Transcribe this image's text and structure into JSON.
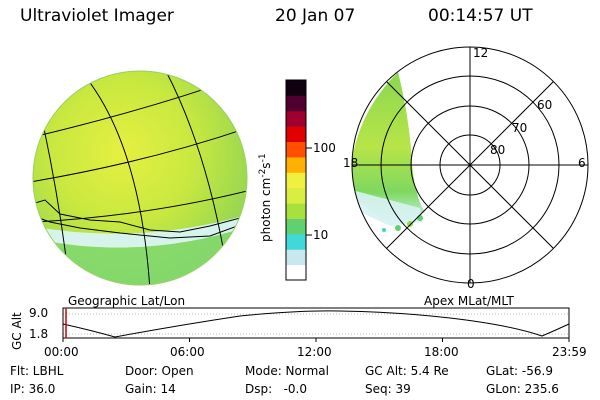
{
  "header": {
    "title": "Ultraviolet Imager",
    "date": "20 Jan 07",
    "time": "00:14:57 UT"
  },
  "left_panel": {
    "label": "Geographic Lat/Lon"
  },
  "right_panel": {
    "label": "Apex MLat/MLT",
    "mlt_labels": [
      "12",
      "18",
      "6",
      "0"
    ],
    "mlat_labels": [
      "60",
      "70",
      "80"
    ]
  },
  "colorbar": {
    "label_main": "photon cm",
    "label_exp1": "-2",
    "label_mid": "s",
    "label_exp2": "-1",
    "ticks": [
      "100",
      "10"
    ],
    "colors": [
      "#ffffff",
      "#c8e8f0",
      "#40d8d8",
      "#60d070",
      "#a8e040",
      "#d8ee40",
      "#f0f040",
      "#ffb000",
      "#ff5000",
      "#e00000",
      "#a00030",
      "#500030",
      "#100010"
    ]
  },
  "altitude_plot": {
    "ylabel": "GC Alt",
    "yticks": [
      "9.0",
      "1.8"
    ],
    "xticks": [
      "00:00",
      "06:00",
      "12:00",
      "18:00",
      "23:59"
    ]
  },
  "info": {
    "flt": "Flt: LBHL",
    "ip": "IP: 36.0",
    "door": "Door: Open",
    "gain": "Gain: 14",
    "mode": "Mode: Normal",
    "dsp": "Dsp:   -0.0",
    "gcalt": "GC Alt: 5.4 Re",
    "seq": "Seq: 39",
    "glat": "GLat: -56.9",
    "glon": "GLon: 235.6"
  }
}
